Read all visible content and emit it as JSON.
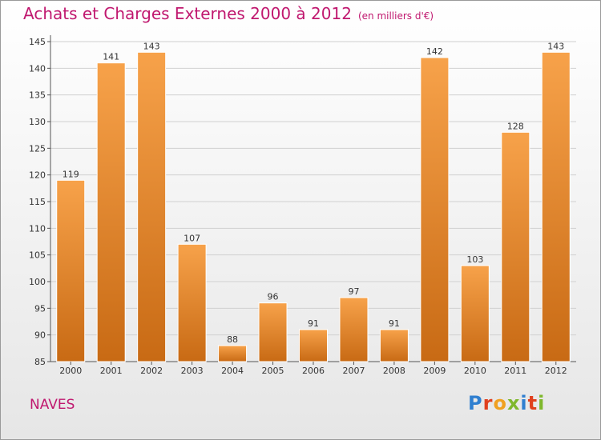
{
  "title": "Achats et Charges Externes 2000 à 2012",
  "unit": "(en milliers d'€)",
  "entity": "NAVES",
  "logo": {
    "text": "Proxiti",
    "letters": [
      "P",
      "r",
      "o",
      "x",
      "i",
      "t",
      "i"
    ],
    "colors": [
      "#2f7fd0",
      "#e0401e",
      "#f0a020",
      "#7fb82c",
      "#2f7fd0",
      "#e0401e",
      "#7fb82c"
    ]
  },
  "colors": {
    "bar_top": "#f7a24a",
    "bar_bottom": "#c86a14",
    "title": "#c0186f",
    "grid": "#d0d0d0"
  },
  "chart_data": {
    "type": "bar",
    "categories": [
      "2000",
      "2001",
      "2002",
      "2003",
      "2004",
      "2005",
      "2006",
      "2007",
      "2008",
      "2009",
      "2010",
      "2011",
      "2012"
    ],
    "values": [
      119,
      141,
      143,
      107,
      88,
      96,
      91,
      97,
      91,
      142,
      103,
      128,
      143
    ],
    "ylim": [
      85,
      145
    ],
    "yticks": [
      85,
      90,
      95,
      100,
      105,
      110,
      115,
      120,
      125,
      130,
      135,
      140,
      145
    ],
    "xlabel": "",
    "ylabel": "",
    "grid": true
  }
}
